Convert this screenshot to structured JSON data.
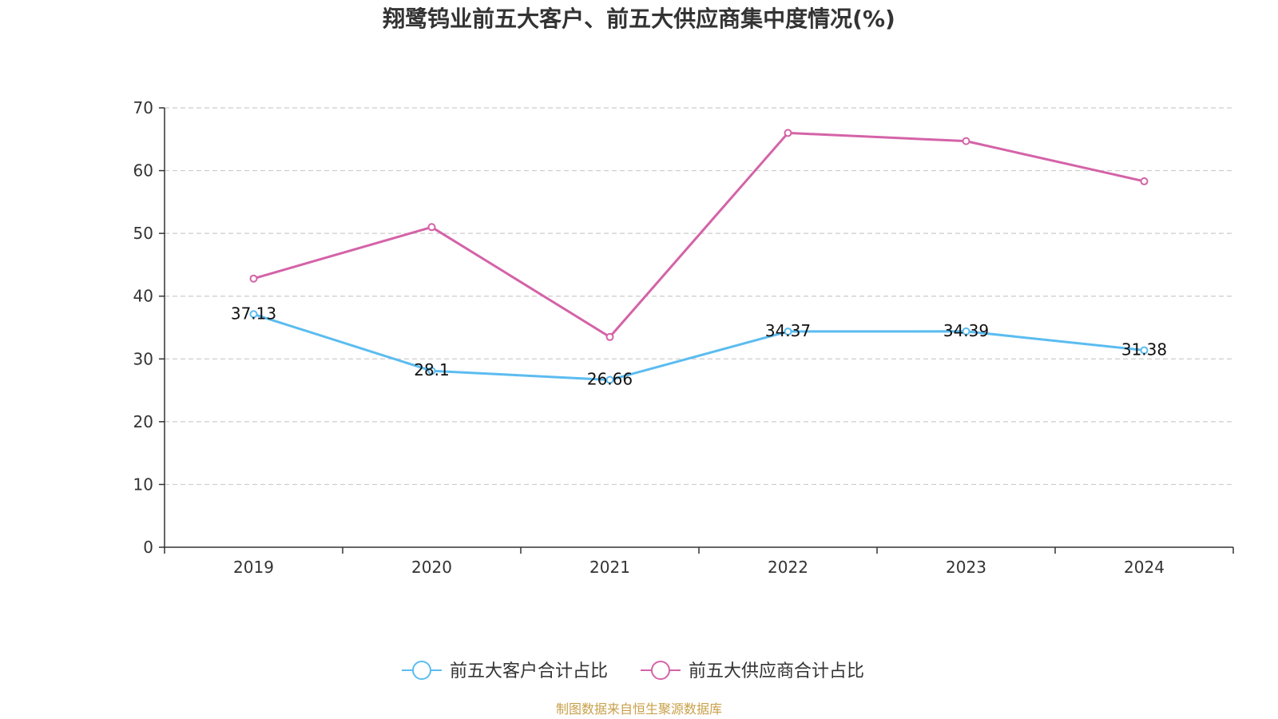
{
  "chart_data": {
    "type": "line",
    "title": "翔鹭钨业前五大客户、前五大供应商集中度情况(%)",
    "categories": [
      "2019",
      "2020",
      "2021",
      "2022",
      "2023",
      "2024"
    ],
    "ylim": [
      0,
      70
    ],
    "yticks": [
      0,
      10,
      20,
      30,
      40,
      50,
      60,
      70
    ],
    "grid": true,
    "legend_position": "bottom-center",
    "series": [
      {
        "name": "前五大客户合计占比",
        "color": "#5bbcf0",
        "values": [
          37.13,
          28.1,
          26.66,
          34.37,
          34.39,
          31.38
        ],
        "labels": [
          "37.13",
          "28.1",
          "26.66",
          "34.37",
          "34.39",
          "31.38"
        ]
      },
      {
        "name": "前五大供应商合计占比",
        "color": "#d463a8",
        "values": [
          42.8,
          51.0,
          33.5,
          66.0,
          64.7,
          58.3
        ]
      }
    ]
  },
  "source": {
    "text": "制图数据来自恒生聚源数据库",
    "color": "#c8a04a"
  }
}
